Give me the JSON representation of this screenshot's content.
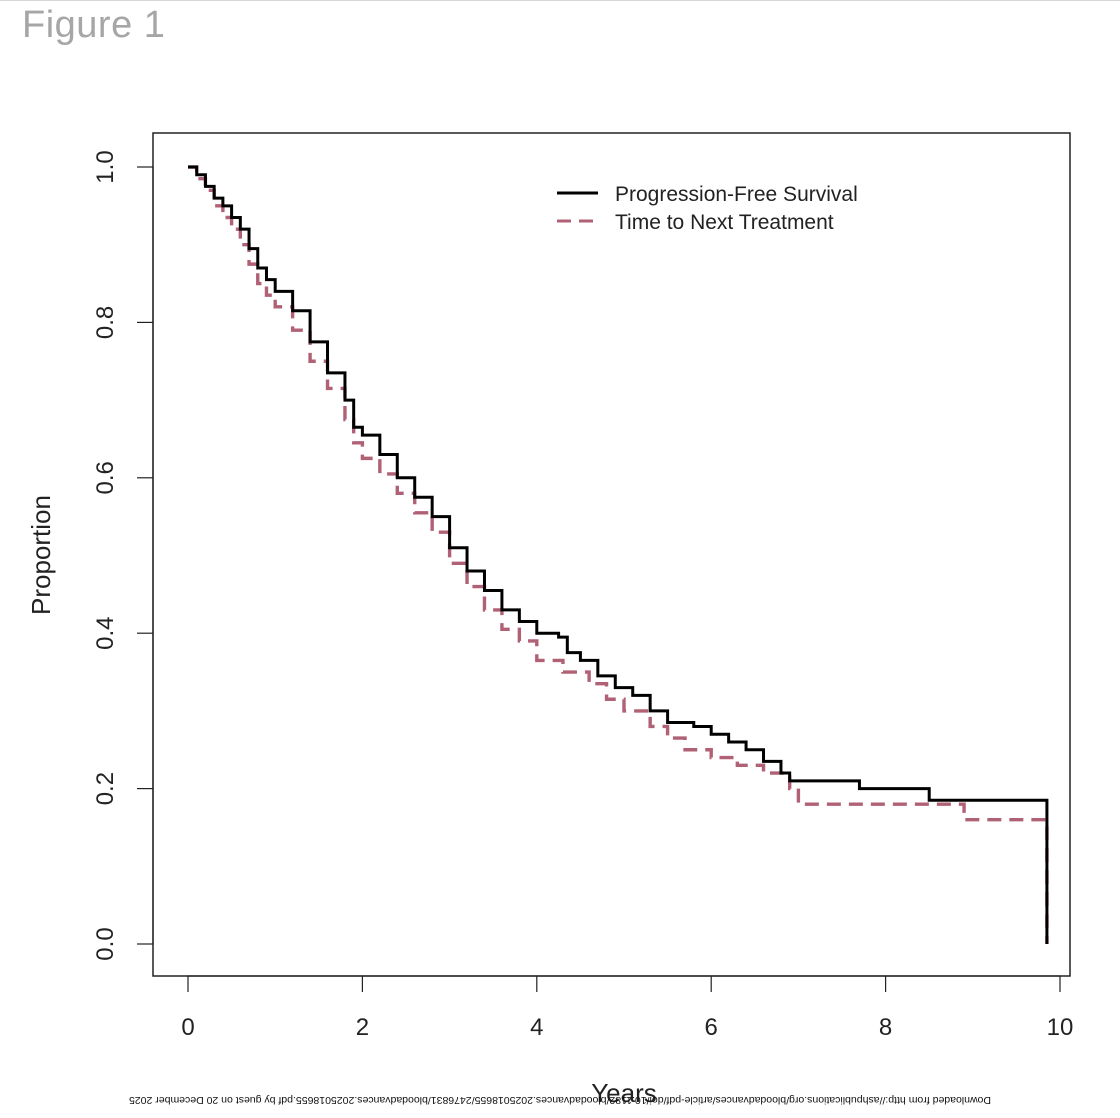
{
  "figure_label": "Figure 1",
  "footer_text": "Downloaded from http://ashpublications.org/bloodadvances/article-pdf/doi/10.1182/bloodadvances.2025018655/2476831/bloodadvances.2025018655.pdf by guest on 20 December 2025",
  "chart_data": {
    "type": "line",
    "step": true,
    "xlabel": "Years",
    "ylabel": "Proportion",
    "xlim": [
      0,
      10
    ],
    "ylim": [
      0,
      1
    ],
    "xticks": [
      "0",
      "2",
      "4",
      "6",
      "8",
      "10"
    ],
    "yticks": [
      "0.0",
      "0.2",
      "0.4",
      "0.6",
      "0.8",
      "1.0"
    ],
    "legend_position": "top-right",
    "series": [
      {
        "name": "Progression-Free Survival",
        "color": "#000000",
        "style": "solid",
        "points": [
          [
            0,
            1.0
          ],
          [
            0.1,
            0.99
          ],
          [
            0.2,
            0.975
          ],
          [
            0.3,
            0.96
          ],
          [
            0.4,
            0.95
          ],
          [
            0.5,
            0.935
          ],
          [
            0.6,
            0.92
          ],
          [
            0.7,
            0.895
          ],
          [
            0.8,
            0.87
          ],
          [
            0.9,
            0.855
          ],
          [
            1.0,
            0.84
          ],
          [
            1.2,
            0.815
          ],
          [
            1.4,
            0.775
          ],
          [
            1.6,
            0.735
          ],
          [
            1.8,
            0.7
          ],
          [
            1.9,
            0.665
          ],
          [
            2.0,
            0.655
          ],
          [
            2.2,
            0.63
          ],
          [
            2.4,
            0.6
          ],
          [
            2.6,
            0.575
          ],
          [
            2.8,
            0.55
          ],
          [
            3.0,
            0.51
          ],
          [
            3.2,
            0.48
          ],
          [
            3.4,
            0.455
          ],
          [
            3.6,
            0.43
          ],
          [
            3.8,
            0.415
          ],
          [
            4.0,
            0.4
          ],
          [
            4.25,
            0.395
          ],
          [
            4.35,
            0.375
          ],
          [
            4.5,
            0.365
          ],
          [
            4.7,
            0.345
          ],
          [
            4.9,
            0.33
          ],
          [
            5.1,
            0.32
          ],
          [
            5.3,
            0.3
          ],
          [
            5.5,
            0.285
          ],
          [
            5.8,
            0.28
          ],
          [
            6.0,
            0.27
          ],
          [
            6.2,
            0.26
          ],
          [
            6.4,
            0.25
          ],
          [
            6.6,
            0.235
          ],
          [
            6.8,
            0.22
          ],
          [
            6.9,
            0.21
          ],
          [
            7.7,
            0.2
          ],
          [
            8.5,
            0.185
          ],
          [
            9.85,
            0.185
          ],
          [
            9.85,
            0.0
          ]
        ]
      },
      {
        "name": "Time to Next Treatment",
        "color": "#b06175",
        "style": "dashed",
        "points": [
          [
            0,
            1.0
          ],
          [
            0.1,
            0.985
          ],
          [
            0.2,
            0.97
          ],
          [
            0.3,
            0.95
          ],
          [
            0.4,
            0.935
          ],
          [
            0.5,
            0.92
          ],
          [
            0.6,
            0.9
          ],
          [
            0.7,
            0.875
          ],
          [
            0.8,
            0.85
          ],
          [
            0.9,
            0.835
          ],
          [
            1.0,
            0.82
          ],
          [
            1.2,
            0.79
          ],
          [
            1.4,
            0.75
          ],
          [
            1.6,
            0.715
          ],
          [
            1.8,
            0.675
          ],
          [
            1.9,
            0.645
          ],
          [
            2.0,
            0.625
          ],
          [
            2.2,
            0.605
          ],
          [
            2.4,
            0.58
          ],
          [
            2.6,
            0.555
          ],
          [
            2.8,
            0.53
          ],
          [
            3.0,
            0.49
          ],
          [
            3.2,
            0.46
          ],
          [
            3.4,
            0.43
          ],
          [
            3.6,
            0.405
          ],
          [
            3.8,
            0.39
          ],
          [
            4.0,
            0.365
          ],
          [
            4.3,
            0.35
          ],
          [
            4.6,
            0.335
          ],
          [
            4.8,
            0.315
          ],
          [
            5.0,
            0.3
          ],
          [
            5.3,
            0.28
          ],
          [
            5.5,
            0.265
          ],
          [
            5.7,
            0.25
          ],
          [
            6.0,
            0.24
          ],
          [
            6.3,
            0.23
          ],
          [
            6.6,
            0.22
          ],
          [
            6.9,
            0.2
          ],
          [
            7.0,
            0.18
          ],
          [
            8.9,
            0.16
          ],
          [
            9.85,
            0.16
          ],
          [
            9.85,
            0.0
          ]
        ]
      }
    ]
  }
}
